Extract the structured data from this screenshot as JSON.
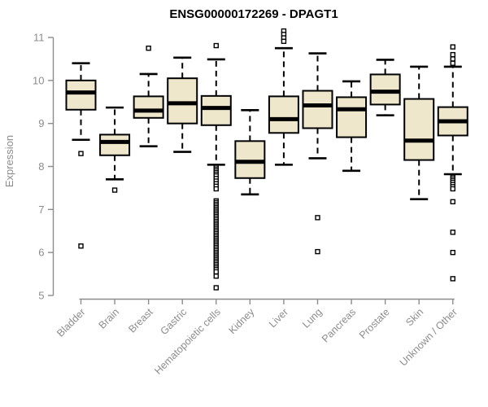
{
  "colors": {
    "box_fill": "#eee7cc",
    "axis_line_gray": "#8c8c8c",
    "axis_text_gray": "#8c8c8c",
    "plot_ink": "#000000",
    "background": "#ffffff"
  },
  "chart_data": {
    "type": "boxplot",
    "title": "ENSG00000172269 - DPAGT1",
    "ylabel": "Expression",
    "xlabel": "",
    "ylim": [
      5,
      11
    ],
    "yticks": [
      5,
      6,
      7,
      8,
      9,
      10,
      11
    ],
    "grid": "off",
    "legend": "none",
    "categories": [
      "Bladder",
      "Brain",
      "Breast",
      "Gastric",
      "Hematopoietic cells",
      "Kidney",
      "Liver",
      "Lung",
      "Pancreas",
      "Prostate",
      "Skin",
      "Unknown / Other"
    ],
    "series": [
      {
        "name": "Bladder",
        "whisker_low": 8.62,
        "q1": 9.32,
        "median": 9.72,
        "q3": 10.0,
        "whisker_high": 10.4,
        "outliers": [
          8.3,
          6.15
        ]
      },
      {
        "name": "Brain",
        "whisker_low": 7.7,
        "q1": 8.26,
        "median": 8.57,
        "q3": 8.74,
        "whisker_high": 9.37,
        "outliers": [
          7.45
        ]
      },
      {
        "name": "Breast",
        "whisker_low": 8.47,
        "q1": 9.13,
        "median": 9.3,
        "q3": 9.63,
        "whisker_high": 10.15,
        "outliers": [
          10.75
        ]
      },
      {
        "name": "Gastric",
        "whisker_low": 8.34,
        "q1": 9.0,
        "median": 9.47,
        "q3": 10.05,
        "whisker_high": 10.53,
        "outliers": []
      },
      {
        "name": "Hematopoietic cells",
        "whisker_low": 8.04,
        "q1": 8.96,
        "median": 9.36,
        "q3": 9.64,
        "whisker_high": 10.49,
        "outliers": [
          10.81,
          7.98,
          7.94,
          7.9,
          7.86,
          7.82,
          7.78,
          7.72,
          7.66,
          7.6,
          7.54,
          7.48,
          7.2,
          7.16,
          7.12,
          7.08,
          7.04,
          7.0,
          6.96,
          6.92,
          6.88,
          6.84,
          6.8,
          6.76,
          6.72,
          6.68,
          6.64,
          6.6,
          6.56,
          6.52,
          6.48,
          6.44,
          6.4,
          6.36,
          6.32,
          6.28,
          6.24,
          6.2,
          6.16,
          6.12,
          6.08,
          6.04,
          6.0,
          5.96,
          5.92,
          5.88,
          5.84,
          5.8,
          5.76,
          5.72,
          5.68,
          5.64,
          5.6,
          5.55,
          5.45,
          5.18
        ]
      },
      {
        "name": "Kidney",
        "whisker_low": 7.35,
        "q1": 7.73,
        "median": 8.11,
        "q3": 8.59,
        "whisker_high": 9.31,
        "outliers": []
      },
      {
        "name": "Liver",
        "whisker_low": 8.04,
        "q1": 8.78,
        "median": 9.1,
        "q3": 9.63,
        "whisker_high": 10.75,
        "outliers": [
          11.15,
          11.07,
          10.99,
          10.91
        ]
      },
      {
        "name": "Lung",
        "whisker_low": 8.19,
        "q1": 8.89,
        "median": 9.42,
        "q3": 9.76,
        "whisker_high": 10.63,
        "outliers": [
          6.81,
          6.02
        ]
      },
      {
        "name": "Pancreas",
        "whisker_low": 7.9,
        "q1": 8.68,
        "median": 9.33,
        "q3": 9.61,
        "whisker_high": 9.98,
        "outliers": []
      },
      {
        "name": "Prostate",
        "whisker_low": 9.19,
        "q1": 9.44,
        "median": 9.74,
        "q3": 10.14,
        "whisker_high": 10.48,
        "outliers": []
      },
      {
        "name": "Skin",
        "whisker_low": 7.24,
        "q1": 8.15,
        "median": 8.6,
        "q3": 9.57,
        "whisker_high": 10.32,
        "outliers": []
      },
      {
        "name": "Unknown / Other",
        "whisker_low": 7.82,
        "q1": 8.72,
        "median": 9.05,
        "q3": 9.38,
        "whisker_high": 10.32,
        "outliers": [
          10.78,
          10.6,
          10.5,
          10.4,
          7.75,
          7.71,
          7.67,
          7.63,
          7.58,
          7.53,
          7.48,
          7.18,
          6.47,
          6.0,
          5.39
        ]
      }
    ]
  }
}
